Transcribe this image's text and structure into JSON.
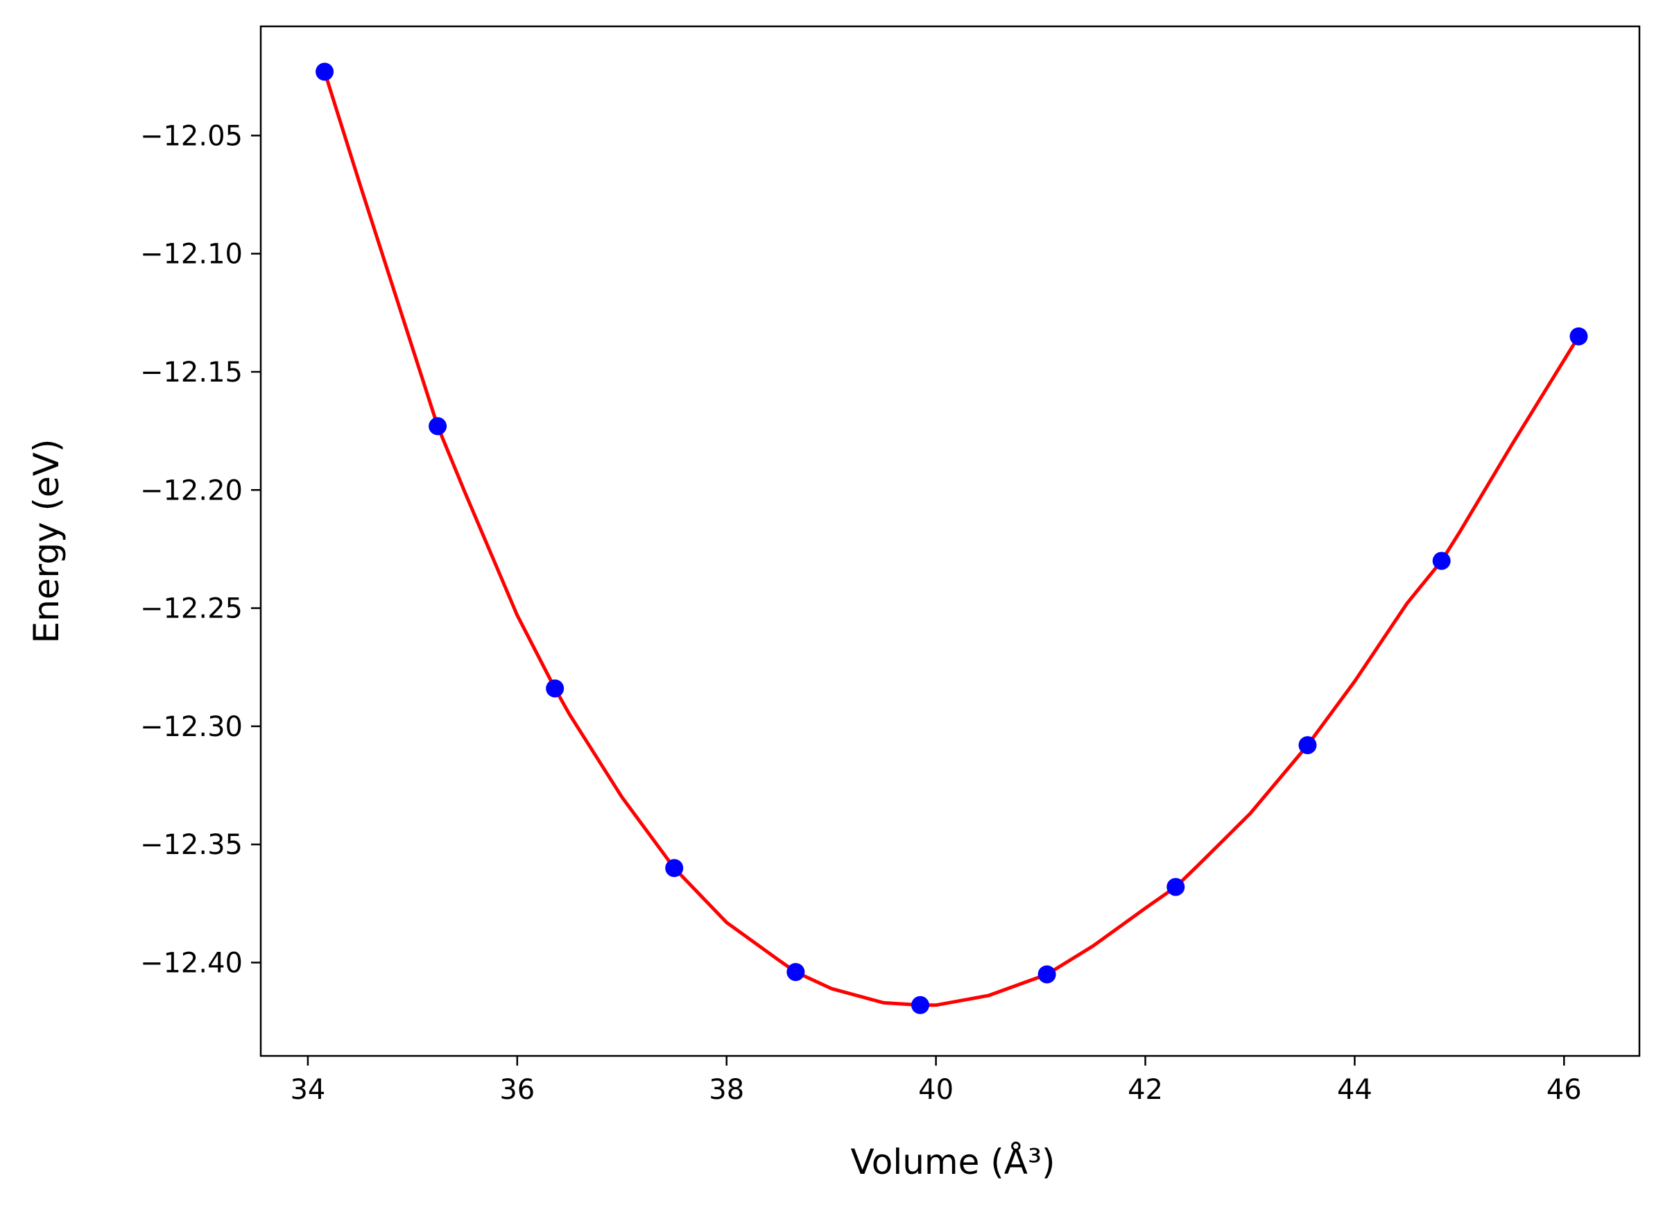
{
  "chart_data": {
    "type": "scatter",
    "xlabel": "Volume (Å³)",
    "ylabel": "Energy (eV)",
    "xlim": [
      33.55,
      46.72
    ],
    "ylim": [
      -12.4395,
      -12.0038
    ],
    "xticks": [
      34,
      36,
      38,
      40,
      42,
      44,
      46
    ],
    "yticks": [
      -12.4,
      -12.35,
      -12.3,
      -12.25,
      -12.2,
      -12.15,
      -12.1,
      -12.05
    ],
    "xtick_labels": [
      "34",
      "36",
      "38",
      "40",
      "42",
      "44",
      "46"
    ],
    "ytick_labels": [
      "−12.40",
      "−12.35",
      "−12.30",
      "−12.25",
      "−12.20",
      "−12.15",
      "−12.10",
      "−12.05"
    ],
    "grid": false,
    "series": [
      {
        "kind": "points",
        "color": "#0000ff",
        "x": [
          34.16,
          35.24,
          36.36,
          37.5,
          38.66,
          39.85,
          41.06,
          42.29,
          43.55,
          44.83,
          46.14
        ],
        "y": [
          -12.023,
          -12.173,
          -12.284,
          -12.36,
          -12.404,
          -12.418,
          -12.405,
          -12.368,
          -12.308,
          -12.23,
          -12.135
        ]
      },
      {
        "kind": "fit-line",
        "color": "#ff0000",
        "x": [
          34.16,
          34.5,
          35.0,
          35.24,
          35.5,
          36.0,
          36.36,
          36.5,
          37.0,
          37.5,
          38.0,
          38.5,
          38.66,
          39.0,
          39.5,
          39.85,
          40.0,
          40.5,
          41.06,
          41.5,
          42.0,
          42.29,
          42.5,
          43.0,
          43.55,
          44.0,
          44.5,
          44.83,
          45.0,
          45.5,
          46.14
        ],
        "y": [
          -12.023,
          -12.071,
          -12.14,
          -12.173,
          -12.201,
          -12.253,
          -12.284,
          -12.295,
          -12.33,
          -12.36,
          -12.383,
          -12.399,
          -12.404,
          -12.411,
          -12.417,
          -12.418,
          -12.418,
          -12.414,
          -12.405,
          -12.393,
          -12.377,
          -12.368,
          -12.359,
          -12.337,
          -12.308,
          -12.281,
          -12.248,
          -12.23,
          -12.218,
          -12.181,
          -12.135
        ]
      }
    ]
  }
}
